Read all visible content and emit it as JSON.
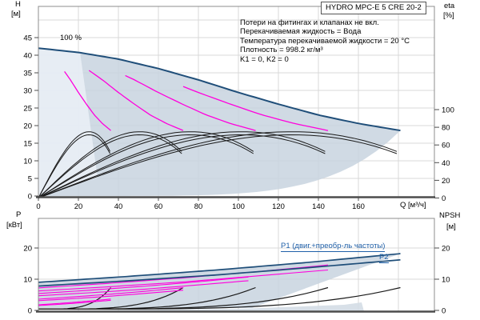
{
  "header": {
    "title": "HYDRO MPC-E 5 CRE 20-2"
  },
  "annotations": {
    "lines": [
      "Потери на фитингах и клапанах не вкл.",
      "Перекачиваемая жидкость = Вода",
      "Температура перекачиваемой жидкости = 20 °C",
      "Плотность = 998.2 кг/м³",
      "K1 = 0, K2 = 0"
    ]
  },
  "axes": {
    "h": "H",
    "h_unit": "[м]",
    "eta": "eta",
    "eta_unit": "[%]",
    "q": "Q [м³/ч]",
    "p": "P",
    "p_unit": "[кВт]",
    "npsh": "NPSH",
    "npsh_unit": "[м]"
  },
  "labels": {
    "speed": "100 %",
    "p1": "P1 (двиг.+преобр-ль частоты)",
    "p2": "P2"
  },
  "chart_data": {
    "type": "line",
    "title": "HYDRO MPC-E 5 CRE 20-2",
    "top_chart": {
      "xlabel": "Q [м³/ч]",
      "ylabel_left": "H [м]",
      "ylabel_right": "eta [%]",
      "x_ticks": [
        0,
        20,
        40,
        60,
        80,
        100,
        120,
        140,
        160
      ],
      "x_range": [
        0,
        198
      ],
      "h_ticks": [
        0,
        5,
        10,
        15,
        20,
        25,
        30,
        35,
        40,
        45
      ],
      "h_range": [
        0,
        54
      ],
      "eta_ticks": [
        0,
        20,
        40,
        60,
        80,
        100
      ],
      "speed_label": "100 %",
      "qh_100pct": [
        [
          0,
          42.0
        ],
        [
          20,
          40.8
        ],
        [
          40,
          38.9
        ],
        [
          60,
          36.2
        ],
        [
          80,
          33.0
        ],
        [
          100,
          29.4
        ],
        [
          120,
          26.1
        ],
        [
          140,
          23.0
        ],
        [
          160,
          20.6
        ],
        [
          181,
          18.6
        ]
      ],
      "pump_counts_shown": [
        1,
        2,
        3,
        4
      ],
      "n_pumps_total": 5,
      "single_pump_qmax": 36.2,
      "total_qmax": 181,
      "envelope_min_head_pow": 5.5,
      "eta_peaks_pct": [
        75,
        71.5
      ],
      "eta_poly": {
        "a": 2.115,
        "b": 0.079,
        "c": -1.514
      }
    },
    "bottom_chart": {
      "p_ticks": [
        0,
        10,
        20
      ],
      "npsh_ticks": [
        0,
        10,
        20
      ],
      "p1_label": "P1 (двиг.+преобр-ль частоты)",
      "p2_label": "P2",
      "p1_kw": [
        [
          0,
          9.0
        ],
        [
          45,
          10.9
        ],
        [
          90,
          13.0
        ],
        [
          135,
          15.4
        ],
        [
          181,
          18.2
        ]
      ],
      "p2_kw": [
        [
          0,
          7.8
        ],
        [
          45,
          9.5
        ],
        [
          90,
          11.4
        ],
        [
          135,
          13.7
        ],
        [
          181,
          16.2
        ]
      ],
      "npsh": {
        "base": 0.4,
        "span": 6.9,
        "pow": 4
      }
    },
    "colors": {
      "qh_curve": "#1f4e79",
      "speed_curve": "#ff00dd",
      "eta_curve": "#1a1a1a",
      "npsh_curve": "#1a1a1a",
      "power_curve": "#1f4e79",
      "fill": "#c8d3df",
      "fill_light": "#e9eef5",
      "npsh_fill": "#d4dde5",
      "grid": "#d8d8d8",
      "frame": "#8c8c8c",
      "axis": "#4d4d4d",
      "label_blue": "#2060a8"
    }
  }
}
